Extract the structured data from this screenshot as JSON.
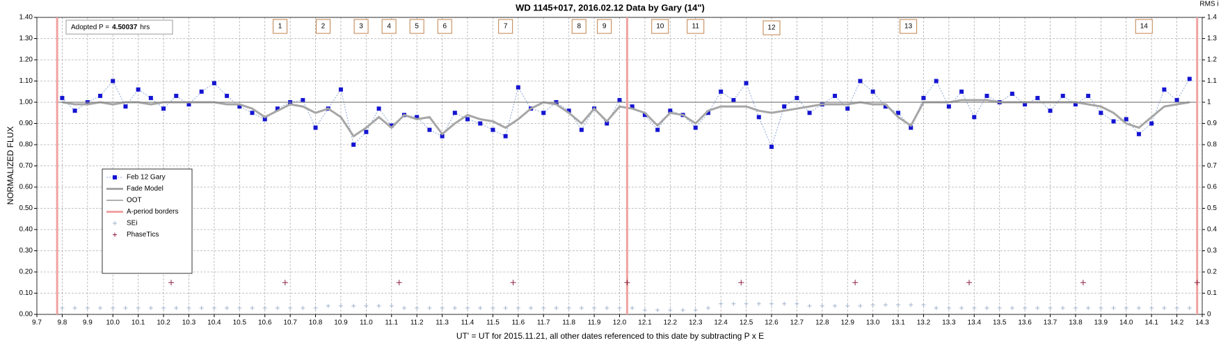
{
  "chart_data": {
    "type": "line",
    "title": "WD 1145+017, 2016.02.12 Data by Gary (14\")",
    "xlabel": "UT' = UT for 2015.11.21, all other dates referenced to this date by subtracting P x E",
    "ylabel": "NORMALIZED FLUX",
    "y2label": "RMS i",
    "adopted": {
      "label": "Adopted P =",
      "value": "4.50037",
      "unit": "hrs"
    },
    "annotations": [
      {
        "text": "1",
        "x": 10.66
      },
      {
        "text": "2",
        "x": 10.83
      },
      {
        "text": "3",
        "x": 10.98
      },
      {
        "text": "4",
        "x": 11.09
      },
      {
        "text": "5",
        "x": 11.2
      },
      {
        "text": "6",
        "x": 11.31
      },
      {
        "text": "7",
        "x": 11.55
      },
      {
        "text": "8",
        "x": 11.84
      },
      {
        "text": "9",
        "x": 11.94
      },
      {
        "text": "10",
        "x": 12.16
      },
      {
        "text": "11",
        "x": 12.3
      },
      {
        "text": "12",
        "x": 12.6
      },
      {
        "text": "13",
        "x": 13.14
      },
      {
        "text": "14",
        "x": 14.07
      }
    ],
    "x": [
      9.8,
      9.85,
      9.9,
      9.95,
      10.0,
      10.05,
      10.1,
      10.15,
      10.2,
      10.25,
      10.3,
      10.35,
      10.4,
      10.45,
      10.5,
      10.55,
      10.6,
      10.65,
      10.7,
      10.75,
      10.8,
      10.85,
      10.9,
      10.95,
      11.0,
      11.05,
      11.1,
      11.15,
      11.2,
      11.25,
      11.3,
      11.35,
      11.4,
      11.45,
      11.5,
      11.55,
      11.6,
      11.65,
      11.7,
      11.75,
      11.8,
      11.85,
      11.9,
      11.95,
      12.0,
      12.05,
      12.1,
      12.15,
      12.2,
      12.25,
      12.3,
      12.35,
      12.4,
      12.45,
      12.5,
      12.55,
      12.6,
      12.65,
      12.7,
      12.75,
      12.8,
      12.85,
      12.9,
      12.95,
      13.0,
      13.05,
      13.1,
      13.15,
      13.2,
      13.25,
      13.3,
      13.35,
      13.4,
      13.45,
      13.5,
      13.55,
      13.6,
      13.65,
      13.7,
      13.75,
      13.8,
      13.85,
      13.9,
      13.95,
      14.0,
      14.05,
      14.1,
      14.15,
      14.2,
      14.25
    ],
    "series": [
      {
        "name": "Feb 12 Gary",
        "marker": "square",
        "color": "#1414d2",
        "line_color": "#8aa6d6",
        "values": [
          1.02,
          0.96,
          1.0,
          1.03,
          1.1,
          0.98,
          1.06,
          1.02,
          0.97,
          1.03,
          0.99,
          1.05,
          1.09,
          1.03,
          0.98,
          0.95,
          0.92,
          0.97,
          1.0,
          1.01,
          0.88,
          0.97,
          1.06,
          0.8,
          0.86,
          0.97,
          0.89,
          0.94,
          0.93,
          0.87,
          0.84,
          0.95,
          0.92,
          0.9,
          0.87,
          0.84,
          1.07,
          0.97,
          0.95,
          1.0,
          0.96,
          0.87,
          0.97,
          0.9,
          1.01,
          0.98,
          0.94,
          0.87,
          0.96,
          0.94,
          0.88,
          0.95,
          1.05,
          1.01,
          1.09,
          0.93,
          0.79,
          0.98,
          1.02,
          0.95,
          0.99,
          1.03,
          0.97,
          1.1,
          1.05,
          0.98,
          0.95,
          0.88,
          1.02,
          1.1,
          0.98,
          1.05,
          0.93,
          1.03,
          1.0,
          1.04,
          0.99,
          1.02,
          0.96,
          1.03,
          0.99,
          1.03,
          0.95,
          0.91,
          0.92,
          0.85,
          0.9,
          1.06,
          1.01,
          1.11
        ]
      },
      {
        "name": "Fade Model",
        "marker": "line",
        "color": "#a6a6a6",
        "values": [
          1.0,
          0.99,
          0.99,
          1.0,
          0.99,
          1.0,
          1.0,
          0.99,
          1.0,
          1.0,
          1.0,
          1.0,
          1.0,
          0.99,
          0.99,
          0.97,
          0.93,
          0.96,
          0.99,
          0.98,
          0.95,
          0.97,
          0.93,
          0.84,
          0.88,
          0.93,
          0.88,
          0.94,
          0.92,
          0.93,
          0.85,
          0.9,
          0.94,
          0.92,
          0.91,
          0.88,
          0.92,
          0.97,
          1.0,
          0.99,
          0.95,
          0.9,
          0.97,
          0.91,
          0.98,
          0.97,
          0.95,
          0.89,
          0.95,
          0.94,
          0.9,
          0.96,
          0.98,
          0.98,
          0.98,
          0.96,
          0.95,
          0.96,
          0.97,
          0.98,
          0.99,
          0.99,
          0.99,
          1.0,
          0.99,
          0.99,
          0.93,
          0.89,
          1.0,
          1.0,
          1.0,
          1.01,
          1.01,
          1.01,
          1.0,
          1.0,
          1.0,
          1.0,
          1.0,
          1.0,
          1.0,
          0.99,
          0.98,
          0.95,
          0.9,
          0.88,
          0.93,
          0.98,
          0.99,
          1.0
        ]
      },
      {
        "name": "OOT",
        "marker": "line",
        "color": "#808080",
        "x": [
          9.78,
          14.28
        ],
        "values": [
          1,
          1
        ]
      },
      {
        "name": "A-period borders",
        "marker": "vline",
        "color": "#f2a2a2",
        "x": [
          9.78,
          12.03,
          14.28
        ]
      },
      {
        "name": "SEi",
        "marker": "plus",
        "color": "#a2b4cc",
        "values": [
          0.03,
          0.03,
          0.03,
          0.03,
          0.03,
          0.03,
          0.03,
          0.03,
          0.03,
          0.03,
          0.03,
          0.03,
          0.03,
          0.03,
          0.03,
          0.03,
          0.03,
          0.03,
          0.03,
          0.03,
          0.03,
          0.04,
          0.04,
          0.04,
          0.04,
          0.04,
          0.04,
          0.03,
          0.03,
          0.03,
          0.03,
          0.03,
          0.03,
          0.03,
          0.03,
          0.03,
          0.03,
          0.03,
          0.03,
          0.03,
          0.03,
          0.03,
          0.03,
          0.03,
          0.03,
          0.03,
          0.02,
          0.02,
          0.02,
          0.02,
          0.02,
          0.03,
          0.05,
          0.05,
          0.05,
          0.05,
          0.05,
          0.05,
          0.05,
          0.04,
          0.04,
          0.04,
          0.04,
          0.04,
          0.045,
          0.045,
          0.045,
          0.045,
          0.045,
          0.03,
          0.03,
          0.03,
          0.03,
          0.03,
          0.03,
          0.03,
          0.03,
          0.03,
          0.03,
          0.03,
          0.03,
          0.03,
          0.03,
          0.03,
          0.03,
          0.03,
          0.03,
          0.03,
          0.03,
          0.03
        ]
      },
      {
        "name": "PhaseTics",
        "marker": "plus",
        "color": "#8b2244",
        "x": [
          10.23,
          10.68,
          11.13,
          11.58,
          12.03,
          12.48,
          12.93,
          13.38,
          13.83,
          14.28
        ],
        "values": [
          0.15,
          0.15,
          0.15,
          0.15,
          0.15,
          0.15,
          0.15,
          0.15,
          0.15,
          0.15
        ]
      }
    ],
    "xlim": [
      9.7,
      14.3
    ],
    "xticks": [
      9.7,
      9.8,
      9.9,
      {
        "value": 10,
        "label": "10.0"
      },
      10.1,
      10.2,
      10.3,
      10.4,
      10.5,
      10.6,
      10.7,
      10.8,
      10.9,
      {
        "value": 11,
        "label": "11.0"
      },
      11.1,
      11.2,
      11.3,
      11.4,
      11.5,
      11.6,
      11.7,
      11.8,
      11.9,
      {
        "value": 12,
        "label": "12.0"
      },
      12.1,
      12.2,
      12.3,
      12.4,
      12.5,
      12.6,
      12.7,
      12.8,
      12.9,
      {
        "value": 13,
        "label": "13.0"
      },
      13.1,
      13.2,
      13.3,
      13.4,
      13.5,
      13.6,
      13.7,
      13.8,
      13.9,
      {
        "value": 14,
        "label": "14.0"
      },
      14.1,
      14.2,
      14.3
    ],
    "ylim": [
      0,
      1.4
    ],
    "yticks": [
      {
        "value": 0,
        "label": "0.00"
      },
      {
        "value": 0.1,
        "label": "0.10"
      },
      {
        "value": 0.2,
        "label": "0.20"
      },
      {
        "value": 0.3,
        "label": "0.30"
      },
      {
        "value": 0.4,
        "label": "0.40"
      },
      {
        "value": 0.5,
        "label": "0.50"
      },
      {
        "value": 0.6,
        "label": "0.60"
      },
      {
        "value": 0.7,
        "label": "0.70"
      },
      {
        "value": 0.8,
        "label": "0.80"
      },
      {
        "value": 0.9,
        "label": "0.90"
      },
      {
        "value": 1,
        "label": "1.00"
      },
      {
        "value": 1.1,
        "label": "1.10"
      },
      {
        "value": 1.2,
        "label": "1.20"
      },
      {
        "value": 1.3,
        "label": "1.30"
      },
      {
        "value": 1.4,
        "label": "1.40"
      }
    ],
    "y2lim": [
      0,
      1.4
    ],
    "y2ticks": [
      0,
      0.1,
      0.2,
      0.3,
      0.4,
      0.5,
      0.6,
      0.7,
      0.8,
      0.9,
      1,
      1.1,
      1.2,
      1.3,
      1.4
    ],
    "grid": true
  }
}
